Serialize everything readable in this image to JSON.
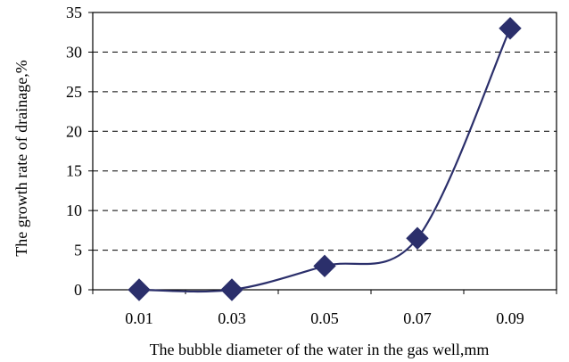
{
  "chart_data": {
    "type": "line",
    "title": "",
    "xlabel": "The bubble diameter of the water in the gas well,mm",
    "ylabel": "The growth rate of drainage,%",
    "x_ticks": [
      "0.01",
      "0.03",
      "0.05",
      "0.07",
      "0.09"
    ],
    "y_ticks": [
      "0",
      "5",
      "10",
      "15",
      "20",
      "25",
      "30",
      "35"
    ],
    "xlim": [
      0.0,
      0.1
    ],
    "ylim": [
      0,
      35
    ],
    "grid": {
      "horizontal": true,
      "style": "dashed"
    },
    "legend": "none",
    "series": [
      {
        "color": "#2b2f6b",
        "marker": "diamond",
        "smooth": true,
        "x": [
          0.01,
          0.03,
          0.05,
          0.07,
          0.09
        ],
        "y": [
          0,
          0,
          3,
          6.5,
          33
        ]
      }
    ]
  }
}
